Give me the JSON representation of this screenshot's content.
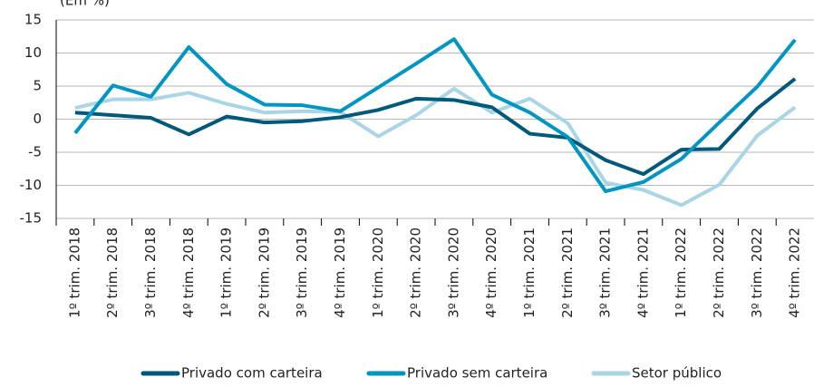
{
  "chart_data": {
    "type": "line",
    "unit_label": "(Em %)",
    "categories": [
      "1º trim. 2018",
      "2º trim. 2018",
      "3º trim. 2018",
      "4º trim. 2018",
      "1º trim. 2019",
      "2º trim. 2019",
      "3º trim. 2019",
      "4º trim. 2019",
      "1º trim. 2020",
      "2º trim. 2020",
      "3º trim. 2020",
      "4º trim. 2020",
      "1º trim. 2021",
      "2º trim. 2021",
      "3º trim. 2021",
      "4º trim. 2021",
      "1º trim. 2022",
      "2º trim. 2022",
      "3º trim. 2022",
      "4º trim. 2022"
    ],
    "series": [
      {
        "name": "Privado com carteira",
        "color": "#00587a",
        "values": [
          1.0,
          0.6,
          0.2,
          -2.3,
          0.4,
          -0.5,
          -0.3,
          0.3,
          1.4,
          3.1,
          2.9,
          1.8,
          -2.2,
          -2.8,
          -6.2,
          -8.3,
          -4.6,
          -4.5,
          1.6,
          6.1
        ]
      },
      {
        "name": "Privado sem carteira",
        "color": "#0096c1",
        "values": [
          -2.1,
          5.1,
          3.4,
          10.9,
          5.3,
          2.2,
          2.1,
          1.2,
          4.8,
          8.4,
          12.1,
          3.7,
          1.0,
          -2.7,
          -10.9,
          -9.5,
          -6.0,
          -0.5,
          4.9,
          12.0
        ]
      },
      {
        "name": "Setor público",
        "color": "#a9d5e5",
        "values": [
          1.7,
          3.0,
          3.0,
          4.0,
          2.3,
          1.0,
          1.2,
          1.1,
          -2.6,
          0.6,
          4.6,
          1.0,
          3.1,
          -0.6,
          -9.6,
          -10.7,
          -13.0,
          -9.9,
          -2.5,
          1.8
        ]
      }
    ],
    "ylim": [
      -15,
      15
    ],
    "yticks": [
      15,
      10,
      5,
      0,
      -5,
      -10,
      -15
    ],
    "grid": true
  }
}
